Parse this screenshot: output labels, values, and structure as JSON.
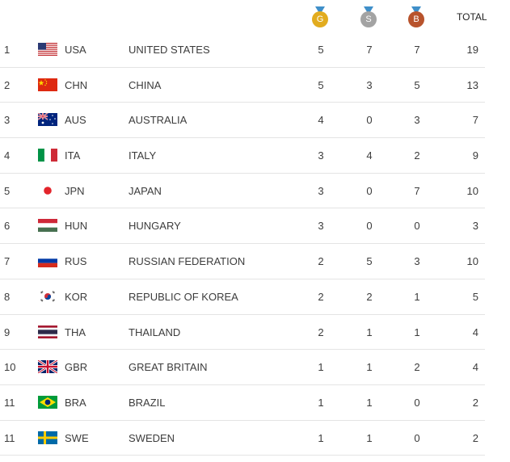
{
  "header": {
    "gold_letter": "G",
    "silver_letter": "S",
    "bronze_letter": "B",
    "total_label": "TOTAL"
  },
  "colors": {
    "gold": "#e2ac1f",
    "silver": "#a3a3a3",
    "bronze": "#b8532c",
    "divider": "#e4e4e4"
  },
  "rows": [
    {
      "rank": "1",
      "code": "USA",
      "name": "UNITED STATES",
      "gold": "5",
      "silver": "7",
      "bronze": "7",
      "total": "19",
      "flag": "usa-flag-icon"
    },
    {
      "rank": "2",
      "code": "CHN",
      "name": "CHINA",
      "gold": "5",
      "silver": "3",
      "bronze": "5",
      "total": "13",
      "flag": "chn-flag-icon"
    },
    {
      "rank": "3",
      "code": "AUS",
      "name": "AUSTRALIA",
      "gold": "4",
      "silver": "0",
      "bronze": "3",
      "total": "7",
      "flag": "aus-flag-icon"
    },
    {
      "rank": "4",
      "code": "ITA",
      "name": "ITALY",
      "gold": "3",
      "silver": "4",
      "bronze": "2",
      "total": "9",
      "flag": "ita-flag-icon"
    },
    {
      "rank": "5",
      "code": "JPN",
      "name": "JAPAN",
      "gold": "3",
      "silver": "0",
      "bronze": "7",
      "total": "10",
      "flag": "jpn-flag-icon"
    },
    {
      "rank": "6",
      "code": "HUN",
      "name": "HUNGARY",
      "gold": "3",
      "silver": "0",
      "bronze": "0",
      "total": "3",
      "flag": "hun-flag-icon"
    },
    {
      "rank": "7",
      "code": "RUS",
      "name": "RUSSIAN FEDERATION",
      "gold": "2",
      "silver": "5",
      "bronze": "3",
      "total": "10",
      "flag": "rus-flag-icon"
    },
    {
      "rank": "8",
      "code": "KOR",
      "name": "REPUBLIC OF KOREA",
      "gold": "2",
      "silver": "2",
      "bronze": "1",
      "total": "5",
      "flag": "kor-flag-icon"
    },
    {
      "rank": "9",
      "code": "THA",
      "name": "THAILAND",
      "gold": "2",
      "silver": "1",
      "bronze": "1",
      "total": "4",
      "flag": "tha-flag-icon"
    },
    {
      "rank": "10",
      "code": "GBR",
      "name": "GREAT BRITAIN",
      "gold": "1",
      "silver": "1",
      "bronze": "2",
      "total": "4",
      "flag": "gbr-flag-icon"
    },
    {
      "rank": "11",
      "code": "BRA",
      "name": "BRAZIL",
      "gold": "1",
      "silver": "1",
      "bronze": "0",
      "total": "2",
      "flag": "bra-flag-icon"
    },
    {
      "rank": "11",
      "code": "SWE",
      "name": "SWEDEN",
      "gold": "1",
      "silver": "1",
      "bronze": "0",
      "total": "2",
      "flag": "swe-flag-icon"
    }
  ]
}
